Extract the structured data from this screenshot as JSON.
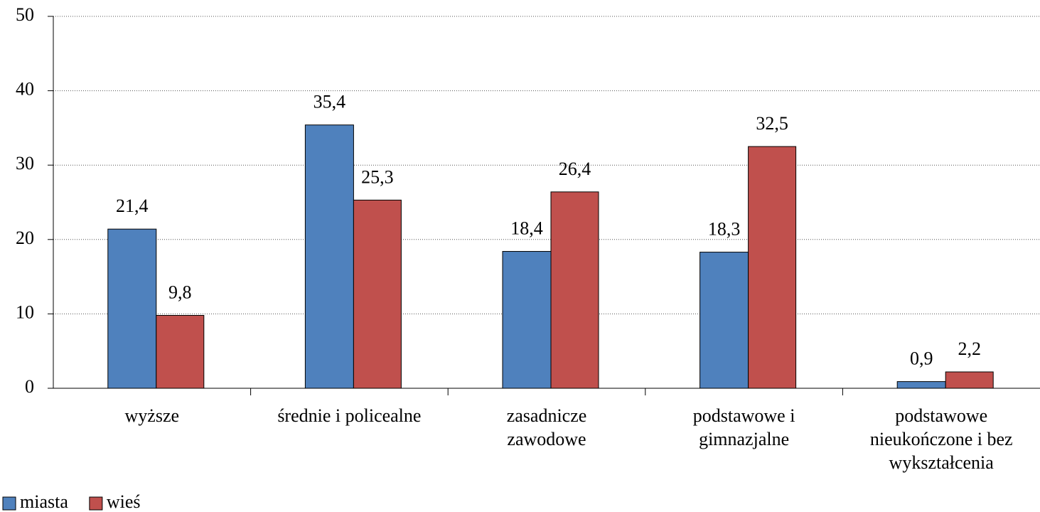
{
  "chart_data": {
    "type": "bar",
    "categories": [
      "wyższe",
      "średnie i policealne",
      "zasadnicze\nzawodowe",
      "podstawowe i\ngimnazjalne",
      "podstawowe\nnieukończone i bez\nwykształcenia"
    ],
    "series": [
      {
        "name": "miasta",
        "color": "#4f81bd",
        "values": [
          21.4,
          35.4,
          18.4,
          18.3,
          0.9
        ],
        "value_labels": [
          "21,4",
          "35,4",
          "18,4",
          "18,3",
          "0,9"
        ]
      },
      {
        "name": "wieś",
        "color": "#c0504d",
        "values": [
          9.8,
          25.3,
          26.4,
          32.5,
          2.2
        ],
        "value_labels": [
          "9,8",
          "25,3",
          "26,4",
          "32,5",
          "2,2"
        ]
      }
    ],
    "ylim": [
      0,
      50
    ],
    "yticks": [
      0,
      10,
      20,
      30,
      40,
      50
    ],
    "grid": true,
    "legend": "bottom-left"
  }
}
